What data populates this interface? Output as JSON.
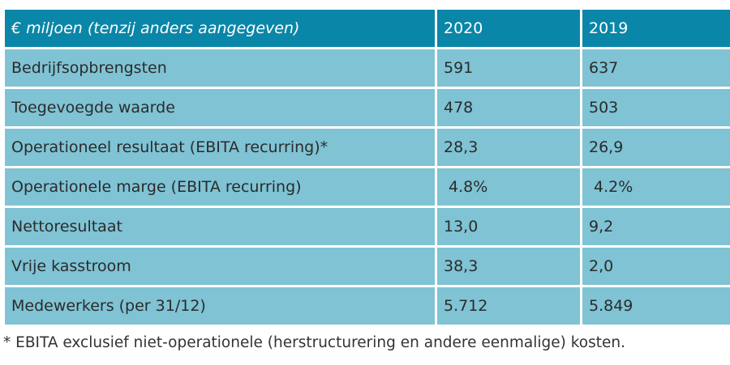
{
  "table": {
    "header": {
      "label": "€ miljoen (tenzij anders aangegeven)",
      "col_2020": "2020",
      "col_2019": "2019"
    },
    "rows": [
      {
        "label": "Bedrijfsopbrengsten",
        "v2020": "591",
        "v2019": "637"
      },
      {
        "label": "Toegevoegde waarde",
        "v2020": "478",
        "v2019": "503"
      },
      {
        "label": "Operationeel resultaat (EBITA recurring)*",
        "v2020": "28,3",
        "v2019": "26,9"
      },
      {
        "label": "Operationele marge (EBITA recurring)",
        "v2020": " 4.8%",
        "v2019": " 4.2%"
      },
      {
        "label": "Nettoresultaat",
        "v2020": "13,0",
        "v2019": "9,2"
      },
      {
        "label": "Vrije kasstroom",
        "v2020": "38,3",
        "v2019": "2,0"
      },
      {
        "label": "Medewerkers (per 31/12)",
        "v2020": "5.712",
        "v2019": "5.849"
      }
    ]
  },
  "footnote": "* EBITA exclusief niet-operationele (herstructurering en andere eenmalige) kosten.",
  "colors": {
    "header_bg": "#0a86a8",
    "row_bg": "#7fc3d4"
  }
}
